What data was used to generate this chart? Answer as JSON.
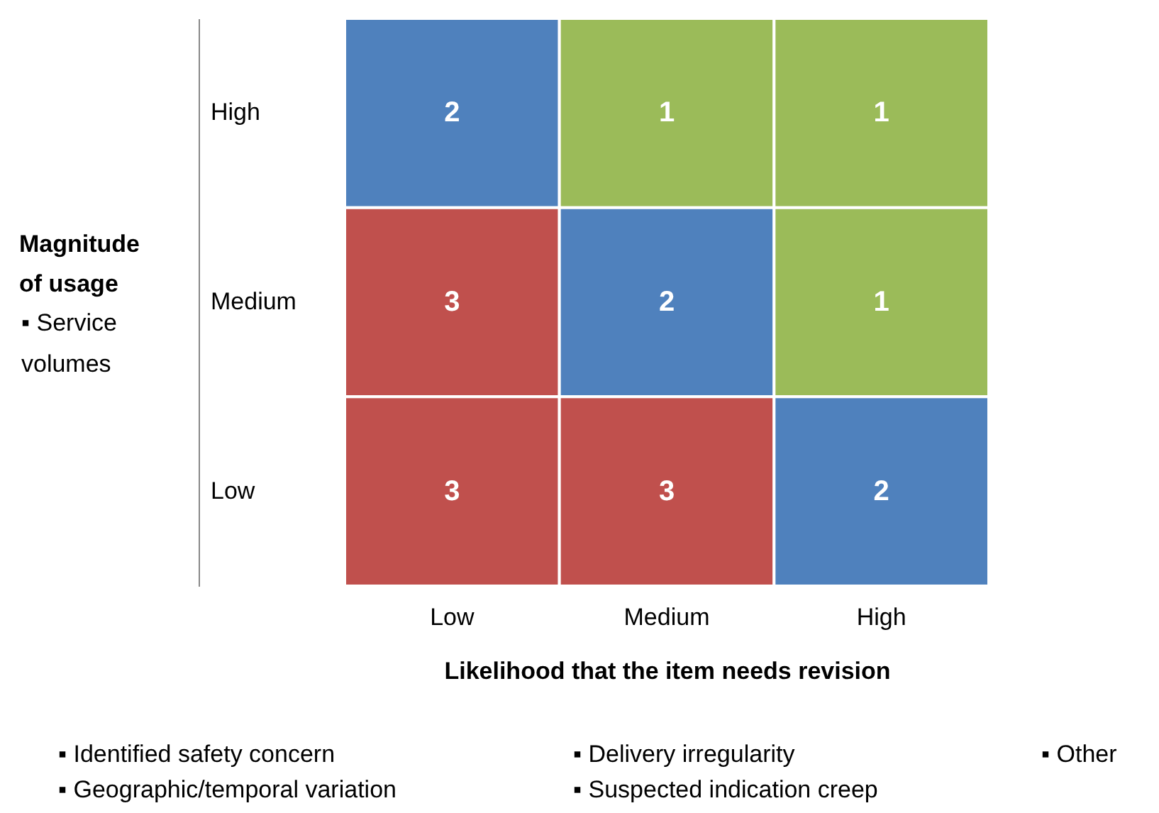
{
  "chart_data": {
    "type": "heatmap",
    "categories": [
      "Low",
      "Medium",
      "High"
    ],
    "y_categories": [
      "High",
      "Medium",
      "Low"
    ],
    "cells": [
      [
        2,
        1,
        1
      ],
      [
        3,
        2,
        1
      ],
      [
        3,
        3,
        2
      ]
    ],
    "colors": [
      [
        "#4f81bd",
        "#9bbb59",
        "#9bbb59"
      ],
      [
        "#c0504d",
        "#4f81bd",
        "#9bbb59"
      ],
      [
        "#c0504d",
        "#c0504d",
        "#4f81bd"
      ]
    ],
    "data_labels": true,
    "xlabel": "Likelihood that the item needs revision",
    "ylabel": "Magnitude of usage",
    "annotations": [
      "▪ Service volumes",
      "▪ Identified safety concern",
      "▪ Delivery irregularity",
      "▪ Other",
      "▪ Geographic/temporal variation",
      "▪ Suspected indication creep"
    ]
  }
}
